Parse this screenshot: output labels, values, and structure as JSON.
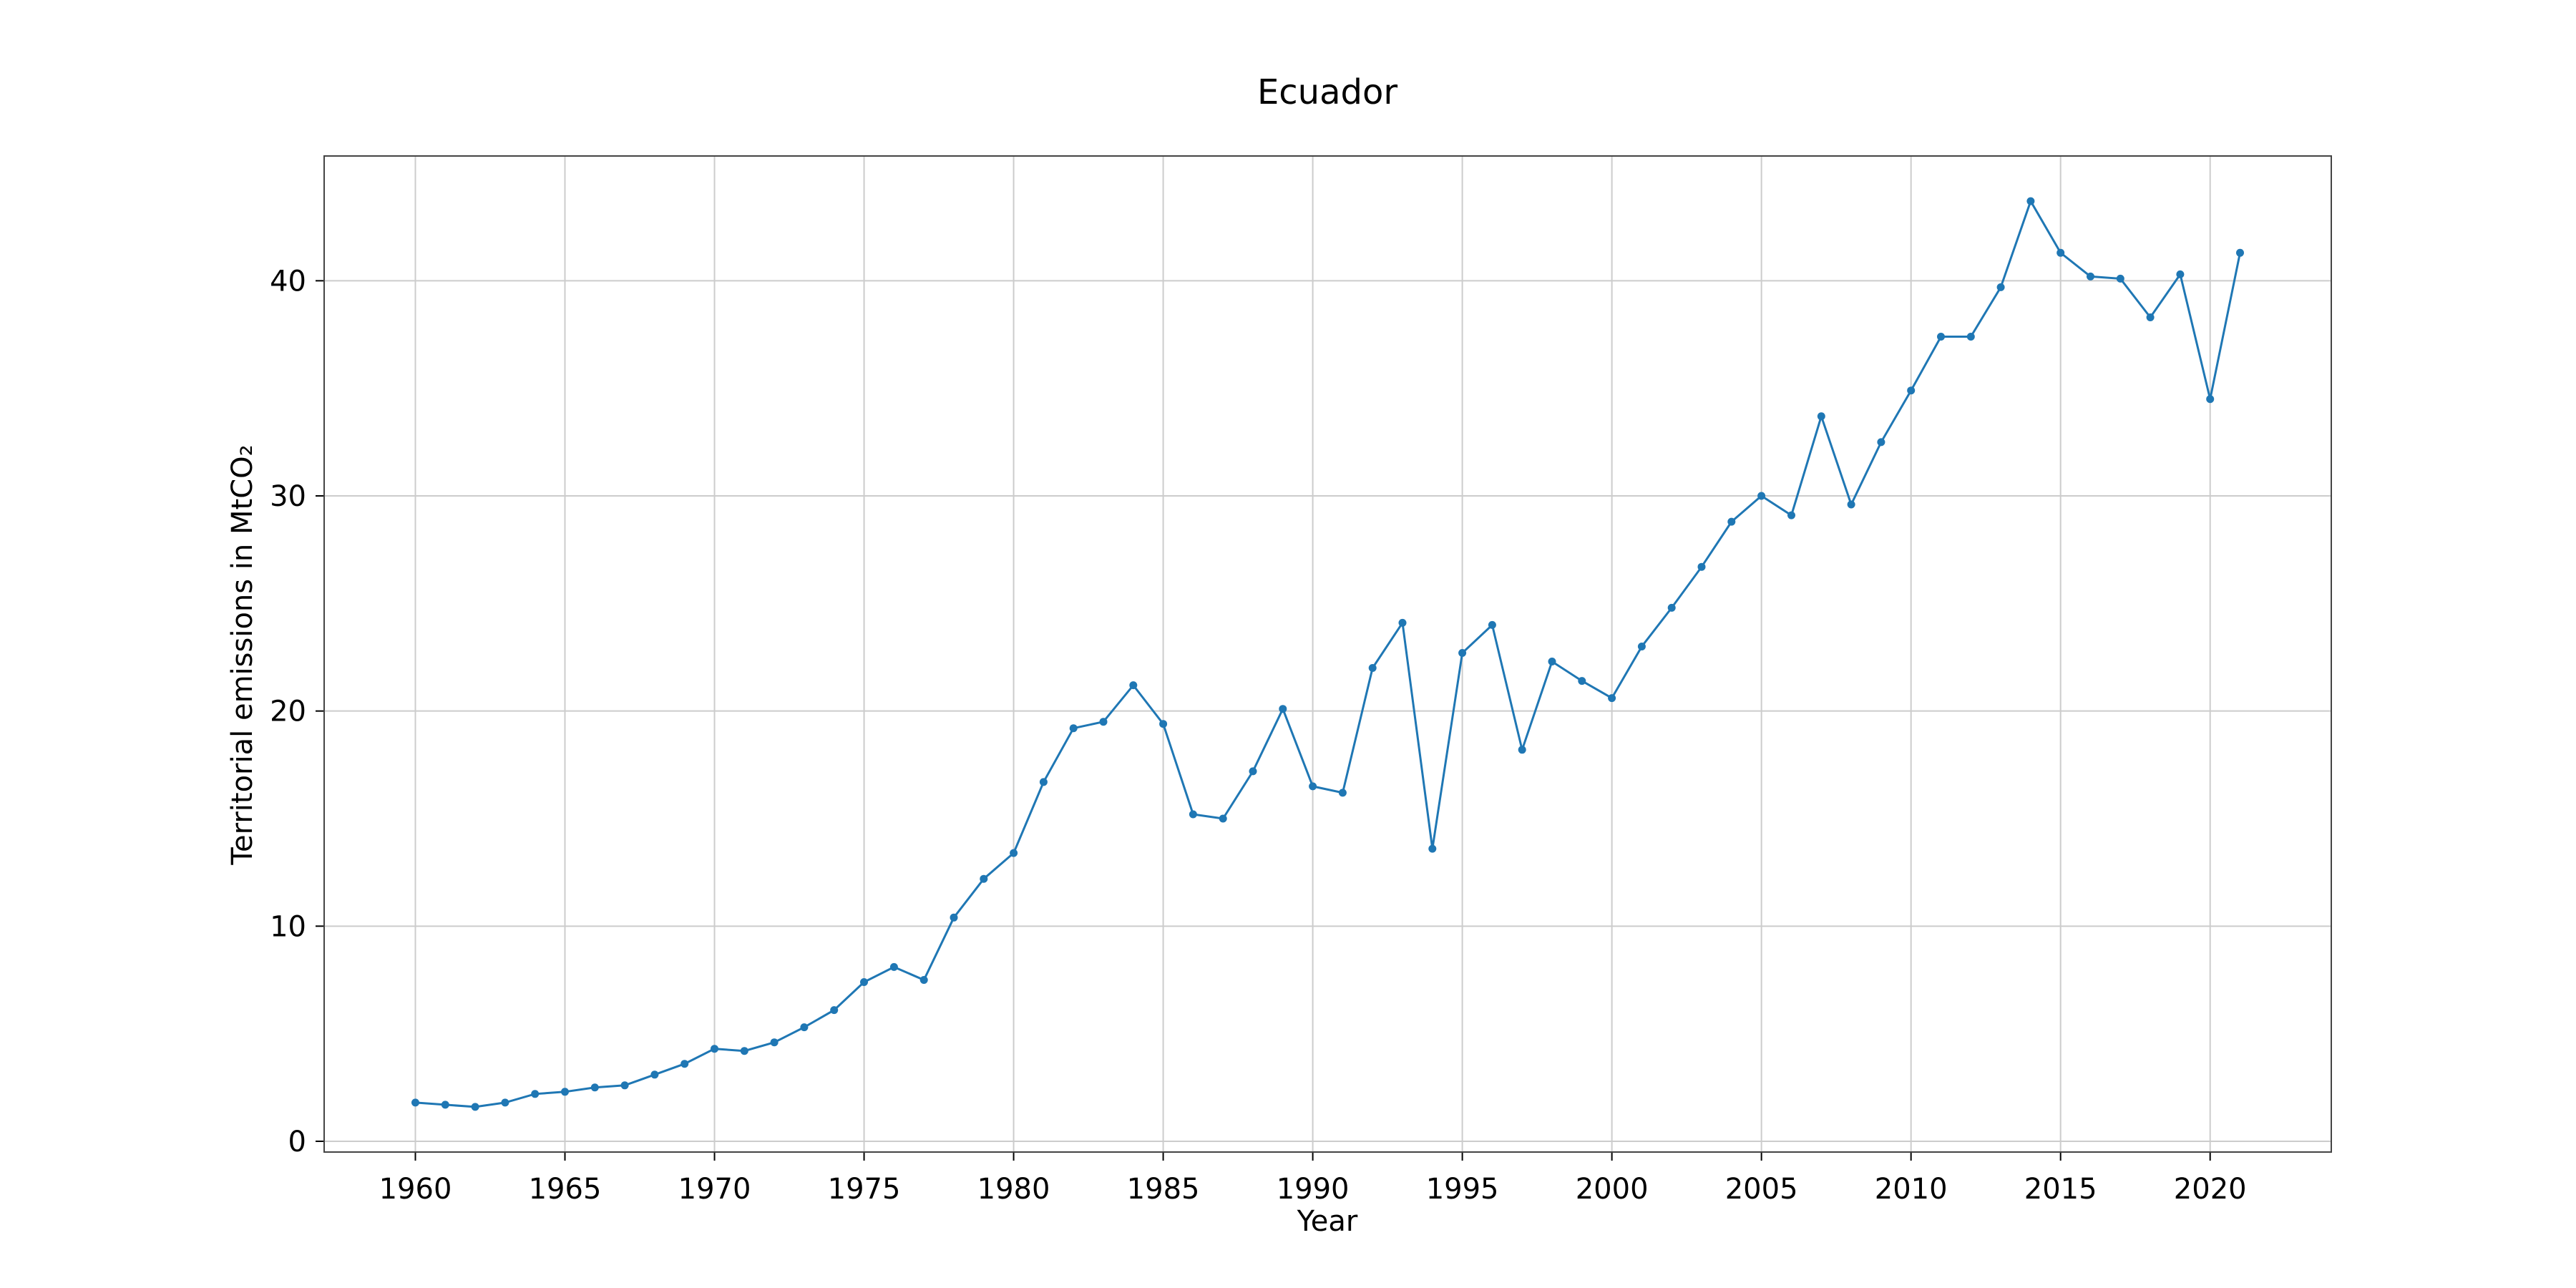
{
  "chart_data": {
    "type": "line",
    "title": "Ecuador",
    "xlabel": "Year",
    "ylabel": "Territorial emissions in MtCO₂",
    "xlim": [
      1956.95,
      2024.05
    ],
    "ylim": [
      -0.5,
      45.8
    ],
    "xticks": [
      1960,
      1965,
      1970,
      1975,
      1980,
      1985,
      1990,
      1995,
      2000,
      2005,
      2010,
      2015,
      2020
    ],
    "yticks": [
      0,
      10,
      20,
      30,
      40
    ],
    "grid": true,
    "color": "#1f77b4",
    "x": [
      1960,
      1961,
      1962,
      1963,
      1964,
      1965,
      1966,
      1967,
      1968,
      1969,
      1970,
      1971,
      1972,
      1973,
      1974,
      1975,
      1976,
      1977,
      1978,
      1979,
      1980,
      1981,
      1982,
      1983,
      1984,
      1985,
      1986,
      1987,
      1988,
      1989,
      1990,
      1991,
      1992,
      1993,
      1994,
      1995,
      1996,
      1997,
      1998,
      1999,
      2000,
      2001,
      2002,
      2003,
      2004,
      2005,
      2006,
      2007,
      2008,
      2009,
      2010,
      2011,
      2012,
      2013,
      2014,
      2015,
      2016,
      2017,
      2018,
      2019,
      2020,
      2021
    ],
    "y": [
      1.8,
      1.7,
      1.6,
      1.8,
      2.2,
      2.3,
      2.5,
      2.6,
      3.1,
      3.6,
      4.3,
      4.2,
      4.6,
      5.3,
      6.1,
      7.4,
      8.1,
      7.5,
      10.4,
      12.2,
      13.4,
      16.7,
      19.2,
      19.5,
      21.2,
      19.4,
      15.2,
      15.0,
      17.2,
      20.1,
      16.5,
      16.2,
      22.0,
      24.1,
      13.6,
      22.7,
      24.0,
      18.2,
      22.3,
      21.4,
      20.6,
      23.0,
      24.8,
      26.7,
      28.8,
      30.0,
      29.1,
      33.7,
      29.6,
      32.5,
      34.9,
      37.4,
      37.4,
      39.7,
      43.7,
      41.3,
      40.2,
      40.1,
      38.3,
      40.3,
      34.5,
      41.3
    ]
  }
}
